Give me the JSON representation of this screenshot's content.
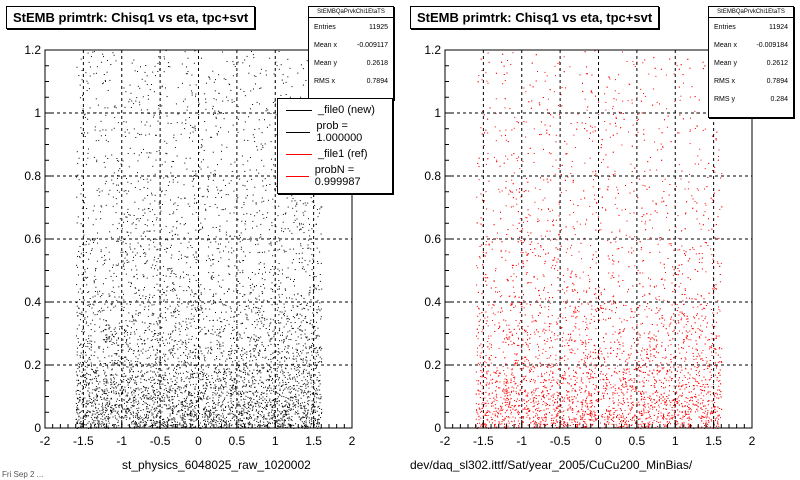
{
  "panels": [
    {
      "title": "StEMB primtrk: Chisq1 vs eta, tpc+svt",
      "stats": {
        "header": "StEMBQaPrvkChi1EtaTS",
        "rows": [
          {
            "label": "Entries",
            "value": "11925"
          },
          {
            "label": "Mean x",
            "value": "-0.009117"
          },
          {
            "label": "Mean y",
            "value": "0.2618"
          },
          {
            "label": "RMS x",
            "value": "0.7894"
          }
        ]
      },
      "x_axis_title": "st_physics_6048025_raw_1020002",
      "legend": [
        {
          "label": "_file0 (new)",
          "color": "#000000"
        },
        {
          "label": "prob = 1.000000",
          "color": "#000000"
        },
        {
          "label": "_file1 (ref)",
          "color": "#ff0000"
        },
        {
          "label": "probN = 0.999987",
          "color": "#ff0000"
        }
      ]
    },
    {
      "title": "StEMB primtrk: Chisq1 vs eta, tpc+svt",
      "stats": {
        "header": "StEMBQaPrvkChi1EtaTS",
        "rows": [
          {
            "label": "Entries",
            "value": "11924"
          },
          {
            "label": "Mean x",
            "value": "-0.009184"
          },
          {
            "label": "Mean y",
            "value": "0.2612"
          },
          {
            "label": "RMS x",
            "value": "0.7894"
          },
          {
            "label": "RMS y",
            "value": "0.284"
          }
        ]
      },
      "x_axis_title": "dev/daq_sl302.ittf/Sat/year_2005/CuCu200_MinBias/"
    }
  ],
  "footer_text": "Fri Sep 2 ...",
  "chart_data": [
    {
      "type": "scatter",
      "title": "StEMB primtrk: Chisq1 vs eta, tpc+svt",
      "xlabel": "st_physics_6048025_raw_1020002",
      "ylabel": "",
      "xlim": [
        -2,
        2
      ],
      "ylim": [
        0,
        1.2
      ],
      "x_ticks": [
        "-2",
        "-1.5",
        "-1",
        "-0.5",
        "0",
        "0.5",
        "1",
        "1.5",
        "2"
      ],
      "y_ticks": [
        "0",
        "0.2",
        "0.4",
        "0.6",
        "0.8",
        "1",
        "1.2"
      ],
      "grid": true,
      "point_color": "#000000",
      "distribution": {
        "x_range": [
          -1.6,
          1.6
        ],
        "y_mean": 0.2618,
        "x_mean": -0.009117,
        "entries": 11925
      },
      "legend_position": "top-right"
    },
    {
      "type": "scatter",
      "title": "StEMB primtrk: Chisq1 vs eta, tpc+svt",
      "xlabel": "dev/daq_sl302.ittf/Sat/year_2005/CuCu200_MinBias/",
      "ylabel": "",
      "xlim": [
        -2,
        2
      ],
      "ylim": [
        0,
        1.2
      ],
      "x_ticks": [
        "-2",
        "-1.5",
        "-1",
        "-0.5",
        "0",
        "0.5",
        "1",
        "1.5",
        "2"
      ],
      "y_ticks": [
        "0",
        "0.2",
        "0.4",
        "0.6",
        "0.8",
        "1",
        "1.2"
      ],
      "grid": true,
      "point_color": "#ff0000",
      "distribution": {
        "x_range": [
          -1.6,
          1.6
        ],
        "y_mean": 0.2612,
        "x_mean": -0.009184,
        "entries": 11924
      }
    }
  ]
}
